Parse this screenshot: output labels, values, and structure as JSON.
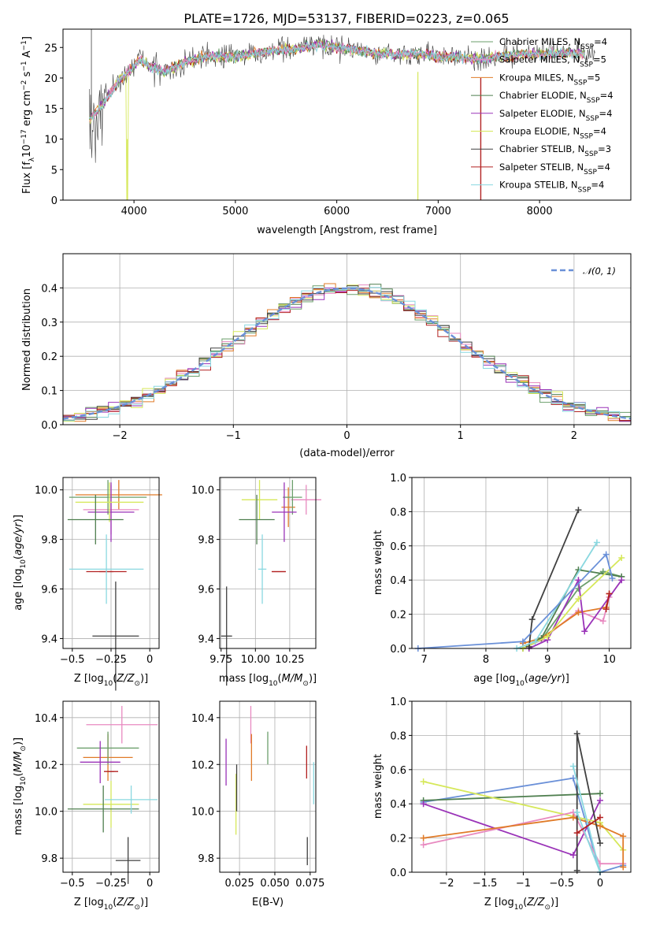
{
  "figure_title": "PLATE=1726, MJD=53137, FIBERID=0223, z=0.065",
  "colors": {
    "Chabrier MILES": "#6b9f6b",
    "Salpeter MILES": "#e88ac0",
    "Kroupa MILES": "#e07b28",
    "Chabrier ELODIE": "#4f7f4f",
    "Salpeter ELODIE": "#9a33b8",
    "Kroupa ELODIE": "#d6e85a",
    "Chabrier STELIB": "#404040",
    "Salpeter STELIB": "#b22222",
    "Kroupa STELIB": "#8ad8e0",
    "model_blue": "#6a90d8"
  },
  "chart_data": [
    {
      "id": "spectrum",
      "type": "line",
      "xlabel": "wavelength [Angstrom, rest frame]",
      "ylabel": "Flux [f_λ10^-17 erg cm^-2 s^-1 A^-1]",
      "xlim": [
        3300,
        8900
      ],
      "ylim": [
        0,
        28
      ],
      "xticks": [
        4000,
        5000,
        6000,
        7000,
        8000
      ],
      "yticks": [
        0,
        5,
        10,
        15,
        20,
        25
      ],
      "legend_position": "upper-right",
      "series": [
        {
          "name": "Chabrier MILES, N_SSP=4",
          "label_base": "Chabrier MILES, N",
          "n_ssp": "4"
        },
        {
          "name": "Salpeter MILES, N_SSP=5",
          "label_base": "Salpeter MILES, N",
          "n_ssp": "5"
        },
        {
          "name": "Kroupa MILES, N_SSP=5",
          "label_base": "Kroupa MILES, N",
          "n_ssp": "5"
        },
        {
          "name": "Chabrier ELODIE, N_SSP=4",
          "label_base": "Chabrier ELODIE, N",
          "n_ssp": "4"
        },
        {
          "name": "Salpeter ELODIE, N_SSP=4",
          "label_base": "Salpeter ELODIE, N",
          "n_ssp": "4"
        },
        {
          "name": "Kroupa ELODIE, N_SSP=4",
          "label_base": "Kroupa ELODIE, N",
          "n_ssp": "4"
        },
        {
          "name": "Chabrier STELIB, N_SSP=3",
          "label_base": "Chabrier STELIB, N",
          "n_ssp": "3"
        },
        {
          "name": "Salpeter STELIB, N_SSP=4",
          "label_base": "Salpeter STELIB, N",
          "n_ssp": "4"
        },
        {
          "name": "Kroupa STELIB, N_SSP=4",
          "label_base": "Kroupa STELIB, N",
          "n_ssp": "4"
        }
      ],
      "continuum": [
        [
          3560,
          13
        ],
        [
          3650,
          15
        ],
        [
          3750,
          17
        ],
        [
          3850,
          19.5
        ],
        [
          3950,
          21
        ],
        [
          4050,
          23
        ],
        [
          4150,
          22
        ],
        [
          4300,
          21
        ],
        [
          4500,
          22.5
        ],
        [
          4700,
          23.5
        ],
        [
          5000,
          23.5
        ],
        [
          5200,
          24
        ],
        [
          5400,
          24.5
        ],
        [
          5600,
          24.8
        ],
        [
          5800,
          25.5
        ],
        [
          6000,
          25
        ],
        [
          6200,
          24.5
        ],
        [
          6400,
          24
        ],
        [
          6600,
          23.8
        ],
        [
          6800,
          24
        ],
        [
          7000,
          23.5
        ],
        [
          7200,
          23.5
        ],
        [
          7400,
          23
        ],
        [
          7600,
          23.5
        ],
        [
          7800,
          23.8
        ],
        [
          8000,
          24
        ],
        [
          8200,
          24
        ],
        [
          8400,
          24
        ],
        [
          8550,
          24
        ]
      ]
    },
    {
      "id": "residuals",
      "type": "histogram",
      "xlabel": "(data-model)/error",
      "ylabel": "Normed distribution",
      "xlim": [
        -2.5,
        2.5
      ],
      "ylim": [
        0,
        0.5
      ],
      "xticks": [
        -2,
        -1,
        0,
        1,
        2
      ],
      "yticks": [
        0.0,
        0.1,
        0.2,
        0.3,
        0.4
      ],
      "legend_position": "upper-right",
      "reference_curve": "𝒩(0, 1)",
      "bin_width": 0.1
    },
    {
      "id": "age-vs-z",
      "type": "scatter",
      "xlabel": "Z [log10(Z/Z⊙)]",
      "ylabel": "age  [log10(age/yr)]",
      "xlim": [
        -0.56,
        0.06
      ],
      "ylim": [
        9.36,
        10.05
      ],
      "xticks": [
        -0.5,
        -0.25,
        0.0
      ],
      "yticks": [
        9.4,
        9.6,
        9.8,
        10.0
      ],
      "points": [
        {
          "series": "Kroupa MILES",
          "x": -0.2,
          "xerr": 0.28,
          "y": 9.98,
          "yerr": 0.06
        },
        {
          "series": "Salpeter MILES",
          "x": -0.25,
          "xerr": 0.18,
          "y": 9.92,
          "yerr": 0.1
        },
        {
          "series": "Chabrier MILES",
          "x": -0.27,
          "xerr": 0.25,
          "y": 9.97,
          "yerr": 0.07
        },
        {
          "series": "Salpeter ELODIE",
          "x": -0.25,
          "xerr": 0.15,
          "y": 9.91,
          "yerr": 0.12
        },
        {
          "series": "Kroupa ELODIE",
          "x": -0.26,
          "xerr": 0.22,
          "y": 9.95,
          "yerr": 0.08
        },
        {
          "series": "Chabrier ELODIE",
          "x": -0.35,
          "xerr": 0.18,
          "y": 9.88,
          "yerr": 0.1
        },
        {
          "series": "Salpeter STELIB",
          "x": -0.28,
          "xerr": 0.13,
          "y": 9.67,
          "yerr": 0.0
        },
        {
          "series": "Kroupa STELIB",
          "x": -0.28,
          "xerr": 0.24,
          "y": 9.68,
          "yerr": 0.14
        },
        {
          "series": "Chabrier STELIB",
          "x": -0.22,
          "xerr": 0.15,
          "y": 9.41,
          "yerr": 0.22
        }
      ]
    },
    {
      "id": "age-vs-mass",
      "type": "scatter",
      "xlabel": "mass [log10(M/M⊙)]",
      "xlim": [
        9.74,
        10.44
      ],
      "ylim": [
        9.36,
        10.05
      ],
      "xticks": [
        9.75,
        10.0,
        10.25
      ],
      "tick_labels": [
        "9.75",
        "10.00",
        "10.25"
      ],
      "yticks": [
        9.4,
        9.6,
        9.8,
        10.0
      ],
      "points": [
        {
          "series": "Salpeter MILES",
          "x": 10.37,
          "xerr": 0.11,
          "y": 9.96,
          "yerr": 0.06
        },
        {
          "series": "Kroupa MILES",
          "x": 10.24,
          "xerr": 0.05,
          "y": 9.93,
          "yerr": 0.08
        },
        {
          "series": "Chabrier MILES",
          "x": 10.27,
          "xerr": 0.07,
          "y": 9.97,
          "yerr": 0.07
        },
        {
          "series": "Salpeter ELODIE",
          "x": 10.21,
          "xerr": 0.09,
          "y": 9.91,
          "yerr": 0.12
        },
        {
          "series": "Kroupa ELODIE",
          "x": 10.03,
          "xerr": 0.13,
          "y": 9.96,
          "yerr": 0.08
        },
        {
          "series": "Chabrier ELODIE",
          "x": 10.01,
          "xerr": 0.13,
          "y": 9.88,
          "yerr": 0.1
        },
        {
          "series": "Salpeter STELIB",
          "x": 10.17,
          "xerr": 0.05,
          "y": 9.67,
          "yerr": 0.0
        },
        {
          "series": "Kroupa STELIB",
          "x": 10.05,
          "xerr": 0.03,
          "y": 9.68,
          "yerr": 0.14
        },
        {
          "series": "Chabrier STELIB",
          "x": 9.79,
          "xerr": 0.04,
          "y": 9.41,
          "yerr": 0.2
        }
      ]
    },
    {
      "id": "weight-vs-age",
      "type": "line",
      "xlabel": "age  [log10(age/yr)]",
      "ylabel": "mass weight",
      "xlim": [
        6.8,
        10.35
      ],
      "ylim": [
        0,
        1
      ],
      "xticks": [
        7,
        8,
        9,
        10
      ],
      "yticks": [
        0.0,
        0.2,
        0.4,
        0.6,
        0.8,
        1.0
      ],
      "series": [
        {
          "name": "Chabrier MILES",
          "points": [
            [
              8.6,
              0.0
            ],
            [
              8.9,
              0.05
            ],
            [
              9.5,
              0.35
            ],
            [
              9.9,
              0.45
            ],
            [
              10.2,
              0.42
            ]
          ]
        },
        {
          "name": "Salpeter MILES",
          "points": [
            [
              8.6,
              0.0
            ],
            [
              8.9,
              0.05
            ],
            [
              9.5,
              0.22
            ],
            [
              9.9,
              0.16
            ],
            [
              10.0,
              0.3
            ]
          ]
        },
        {
          "name": "Kroupa MILES",
          "points": [
            [
              8.6,
              0.03
            ],
            [
              8.9,
              0.06
            ],
            [
              9.5,
              0.21
            ],
            [
              9.95,
              0.24
            ],
            [
              10.0,
              0.32
            ]
          ]
        },
        {
          "name": "Chabrier ELODIE",
          "points": [
            [
              8.6,
              0.0
            ],
            [
              8.9,
              0.06
            ],
            [
              9.5,
              0.46
            ],
            [
              10.2,
              0.42
            ]
          ]
        },
        {
          "name": "Salpeter ELODIE",
          "points": [
            [
              8.7,
              0.0
            ],
            [
              9.0,
              0.05
            ],
            [
              9.5,
              0.4
            ],
            [
              9.6,
              0.1
            ],
            [
              10.2,
              0.4
            ]
          ]
        },
        {
          "name": "Kroupa ELODIE",
          "points": [
            [
              8.6,
              0.0
            ],
            [
              9.0,
              0.07
            ],
            [
              9.5,
              0.29
            ],
            [
              10.2,
              0.53
            ]
          ]
        },
        {
          "name": "Chabrier STELIB",
          "points": [
            [
              8.7,
              0.01
            ],
            [
              8.75,
              0.17
            ],
            [
              9.5,
              0.81
            ]
          ]
        },
        {
          "name": "Salpeter STELIB",
          "points": [
            [
              9.95,
              0.23
            ],
            [
              10.0,
              0.32
            ]
          ]
        },
        {
          "name": "Kroupa STELIB",
          "points": [
            [
              8.5,
              0.0
            ],
            [
              8.8,
              0.04
            ],
            [
              9.8,
              0.62
            ]
          ]
        },
        {
          "name": "Model blue",
          "points": [
            [
              6.9,
              0.0
            ],
            [
              8.6,
              0.04
            ],
            [
              9.95,
              0.55
            ],
            [
              10.05,
              0.41
            ]
          ]
        }
      ]
    },
    {
      "id": "mass-vs-z",
      "type": "scatter",
      "xlabel": "Z [log10(Z/Z⊙)]",
      "ylabel": "mass [log10(M/M⊙)]",
      "xlim": [
        -0.56,
        0.06
      ],
      "ylim": [
        9.74,
        10.47
      ],
      "xticks": [
        -0.5,
        -0.25,
        0.0
      ],
      "yticks": [
        9.8,
        10.0,
        10.2,
        10.4
      ],
      "points": [
        {
          "series": "Salpeter MILES",
          "x": -0.18,
          "xerr": 0.23,
          "y": 10.37,
          "yerr": 0.08
        },
        {
          "series": "Kroupa MILES",
          "x": -0.27,
          "xerr": 0.16,
          "y": 10.23,
          "yerr": 0.1
        },
        {
          "series": "Chabrier MILES",
          "x": -0.27,
          "xerr": 0.2,
          "y": 10.27,
          "yerr": 0.07
        },
        {
          "series": "Salpeter ELODIE",
          "x": -0.32,
          "xerr": 0.13,
          "y": 10.21,
          "yerr": 0.09
        },
        {
          "series": "Kroupa ELODIE",
          "x": -0.25,
          "xerr": 0.18,
          "y": 10.03,
          "yerr": 0.1
        },
        {
          "series": "Chabrier ELODIE",
          "x": -0.3,
          "xerr": 0.23,
          "y": 10.01,
          "yerr": 0.1
        },
        {
          "series": "Salpeter STELIB",
          "x": -0.25,
          "xerr": 0.02,
          "y": 10.17,
          "yerr": 0.0
        },
        {
          "series": "Kroupa STELIB",
          "x": -0.12,
          "xerr": 0.17,
          "y": 10.05,
          "yerr": 0.06
        },
        {
          "series": "Chabrier STELIB",
          "x": -0.14,
          "xerr": 0.08,
          "y": 9.79,
          "yerr": 0.1
        }
      ]
    },
    {
      "id": "mass-vs-ebv",
      "type": "scatter",
      "xlabel": "E(B-V)",
      "xlim": [
        0.011,
        0.079
      ],
      "ylim": [
        9.74,
        10.47
      ],
      "xticks": [
        0.025,
        0.05,
        0.075
      ],
      "tick_labels": [
        "0.025",
        "0.050",
        "0.075"
      ],
      "yticks": [
        9.8,
        10.0,
        10.2,
        10.4
      ],
      "points": [
        {
          "series": "Salpeter ELODIE",
          "x": 0.0155,
          "y": 10.21,
          "yerr": 0.1
        },
        {
          "series": "Kroupa ELODIE",
          "x": 0.0225,
          "y": 10.03,
          "yerr": 0.13
        },
        {
          "series": "Chabrier STELIB",
          "x": 0.023,
          "y": 10.1,
          "yerr": 0.1
        },
        {
          "series": "Salpeter MILES",
          "x": 0.033,
          "y": 10.37,
          "yerr": 0.08
        },
        {
          "series": "Kroupa MILES",
          "x": 0.0335,
          "y": 10.23,
          "yerr": 0.1
        },
        {
          "series": "Chabrier MILES",
          "x": 0.045,
          "y": 10.27,
          "yerr": 0.07
        },
        {
          "series": "Salpeter STELIB",
          "x": 0.0725,
          "y": 10.21,
          "yerr": 0.07
        },
        {
          "series": "Chabrier STELIB",
          "x": 0.073,
          "y": 9.83,
          "yerr": 0.06
        },
        {
          "series": "Kroupa STELIB",
          "x": 0.0775,
          "y": 10.12,
          "yerr": 0.09
        }
      ]
    },
    {
      "id": "weight-vs-z",
      "type": "line",
      "xlabel": "Z [log10(Z/Z⊙)]",
      "ylabel": "mass weight",
      "xlim": [
        -2.45,
        0.4
      ],
      "ylim": [
        0,
        1
      ],
      "xticks": [
        -2.0,
        -1.5,
        -1.0,
        -0.5,
        0.0
      ],
      "yticks": [
        0.0,
        0.2,
        0.4,
        0.6,
        0.8,
        1.0
      ],
      "series": [
        {
          "name": "Model blue",
          "points": [
            [
              -2.3,
              0.41
            ],
            [
              -0.35,
              0.55
            ],
            [
              0.0,
              0.0
            ],
            [
              0.3,
              0.04
            ]
          ]
        },
        {
          "name": "Chabrier ELODIE",
          "points": [
            [
              -2.3,
              0.42
            ],
            [
              0.0,
              0.46
            ]
          ]
        },
        {
          "name": "Salpeter ELODIE",
          "points": [
            [
              -2.3,
              0.4
            ],
            [
              -0.35,
              0.1
            ],
            [
              0.0,
              0.42
            ]
          ]
        },
        {
          "name": "Kroupa ELODIE",
          "points": [
            [
              -2.3,
              0.53
            ],
            [
              0.0,
              0.29
            ],
            [
              0.3,
              0.13
            ]
          ]
        },
        {
          "name": "Salpeter MILES",
          "points": [
            [
              -2.3,
              0.16
            ],
            [
              -0.35,
              0.35
            ],
            [
              0.0,
              0.05
            ],
            [
              0.3,
              0.05
            ]
          ]
        },
        {
          "name": "Kroupa MILES",
          "points": [
            [
              -2.3,
              0.2
            ],
            [
              -0.35,
              0.32
            ],
            [
              0.0,
              0.27
            ],
            [
              0.3,
              0.21
            ],
            [
              0.3,
              0.03
            ]
          ]
        },
        {
          "name": "Chabrier STELIB",
          "points": [
            [
              -0.3,
              0.01
            ],
            [
              -0.3,
              0.81
            ],
            [
              0.0,
              0.17
            ]
          ]
        },
        {
          "name": "Kroupa STELIB",
          "points": [
            [
              -0.35,
              0.62
            ],
            [
              0.0,
              0.0
            ],
            [
              -0.3,
              0.35
            ]
          ]
        },
        {
          "name": "Salpeter STELIB",
          "points": [
            [
              -0.3,
              0.23
            ],
            [
              0.0,
              0.32
            ]
          ]
        }
      ]
    }
  ]
}
